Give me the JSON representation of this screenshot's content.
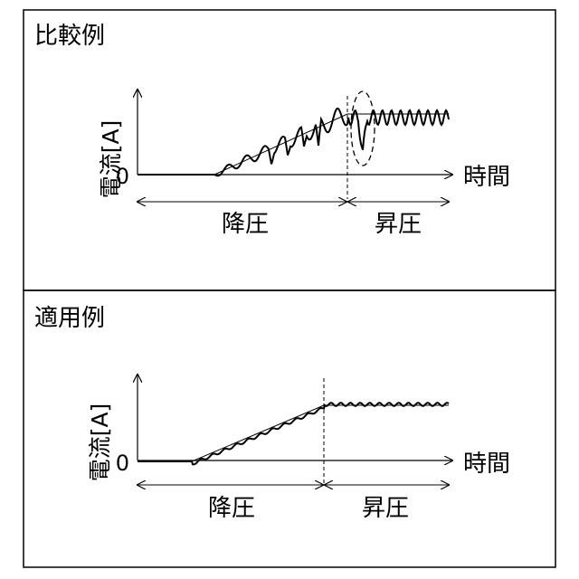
{
  "panels": [
    {
      "title": "比較例",
      "ylabel": "電流[A]",
      "zero_label": "0",
      "xlabel": "時間",
      "phase_labels": [
        "降圧",
        "昇圧"
      ],
      "highlight": "dip-circled"
    },
    {
      "title": "適用例",
      "ylabel": "電流[A]",
      "zero_label": "0",
      "xlabel": "時間",
      "phase_labels": [
        "降圧",
        "昇圧"
      ]
    }
  ],
  "colors": {
    "line": "#000000",
    "background": "#ffffff"
  }
}
